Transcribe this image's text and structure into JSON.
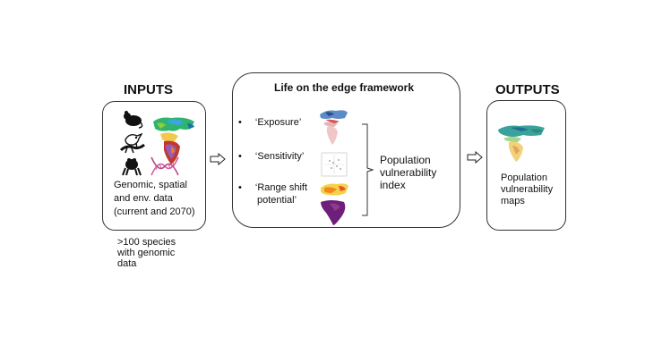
{
  "inputs": {
    "heading": "INPUTS",
    "description_lines": [
      "Genomic, spatial",
      "and env. data",
      "(current and 2070)"
    ],
    "note_lines": [
      ">100 species",
      "with genomic",
      "data"
    ]
  },
  "framework": {
    "title": "Life on the edge framework",
    "bullet_symbol": "•",
    "items": [
      "‘Exposure’",
      "‘Sensitivity’",
      "‘Range shift",
      "potential’"
    ],
    "result_lines": [
      "Population",
      "vulnerability",
      "index"
    ]
  },
  "outputs": {
    "heading": "OUTPUTS",
    "description_lines": [
      "Population",
      "vulnerability",
      "maps"
    ]
  },
  "icons": {
    "inputs_images": [
      "rodent-silhouette-icon",
      "bird-silhouette-icon",
      "lizard-silhouette-icon",
      "frog-silhouette-icon",
      "dna-helix-icon",
      "colored-range-map-icon"
    ],
    "framework_images": [
      "exposure-map-icon",
      "sensitivity-plot-icon",
      "range-shift-map-icon",
      "range-shift-purple-map-icon",
      "right-brace-icon"
    ],
    "arrows": [
      "arrow-right-icon",
      "arrow-right-icon"
    ]
  },
  "colors": {
    "box_border": "#333333",
    "map_purple": "#6d1f7a",
    "map_orange": "#f08a1c",
    "map_green": "#4caf50",
    "map_blue": "#2a7fbf",
    "dna_pink": "#d95aa0"
  }
}
